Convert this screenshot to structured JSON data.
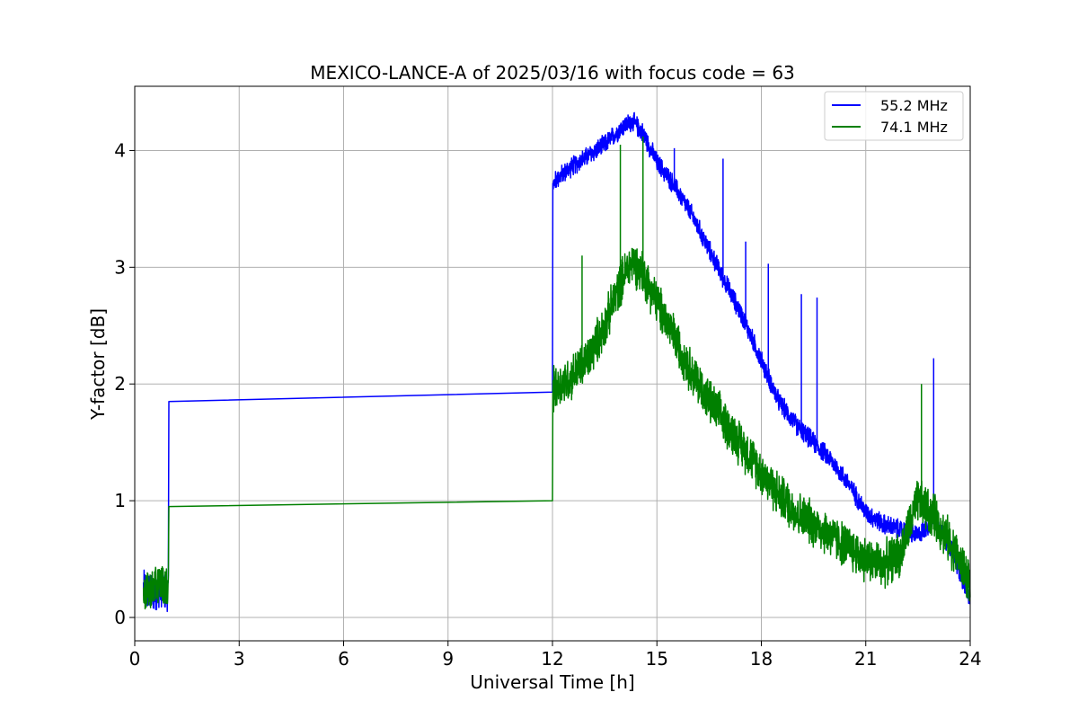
{
  "chart_data": {
    "type": "line",
    "title": "MEXICO-LANCE-A of 2025/03/16 with focus code = 63",
    "xlabel": "Universal Time [h]",
    "ylabel": "Y-factor [dB]",
    "xlim": [
      0,
      24
    ],
    "ylim": [
      -0.2,
      4.55
    ],
    "xticks": [
      0,
      3,
      6,
      9,
      12,
      15,
      18,
      21,
      24
    ],
    "yticks": [
      0,
      1,
      2,
      3,
      4
    ],
    "grid": true,
    "legend_position": "top-right",
    "series": [
      {
        "name": "55.2 MHz",
        "color": "#0000ff",
        "x": [
          0.25,
          0.5,
          0.75,
          0.97,
          0.98,
          12.0,
          12.01,
          12.1,
          12.5,
          13.0,
          13.5,
          14.0,
          14.3,
          14.6,
          15.0,
          15.5,
          16.0,
          16.5,
          17.0,
          17.5,
          18.0,
          18.5,
          19.0,
          19.5,
          20.0,
          20.5,
          21.0,
          21.5,
          22.0,
          22.5,
          23.0,
          23.5,
          24.0
        ],
        "y": [
          0.25,
          0.2,
          0.25,
          0.2,
          1.85,
          1.93,
          3.7,
          3.75,
          3.85,
          3.95,
          4.05,
          4.2,
          4.25,
          4.15,
          3.9,
          3.7,
          3.45,
          3.15,
          2.85,
          2.55,
          2.2,
          1.85,
          1.65,
          1.5,
          1.35,
          1.15,
          0.9,
          0.8,
          0.75,
          0.7,
          0.85,
          0.55,
          0.15
        ]
      },
      {
        "name": "74.1 MHz",
        "color": "#008000",
        "x": [
          0.25,
          0.5,
          0.75,
          0.97,
          0.98,
          12.0,
          12.01,
          12.5,
          13.0,
          13.5,
          14.0,
          14.3,
          14.6,
          15.0,
          15.5,
          16.0,
          16.5,
          17.0,
          17.5,
          18.0,
          18.5,
          19.0,
          19.5,
          20.0,
          20.5,
          21.0,
          21.5,
          22.0,
          22.5,
          23.0,
          23.5,
          24.0
        ],
        "y": [
          0.2,
          0.25,
          0.3,
          0.25,
          0.95,
          1.0,
          1.95,
          2.05,
          2.2,
          2.5,
          2.9,
          3.05,
          2.95,
          2.7,
          2.4,
          2.1,
          1.85,
          1.65,
          1.45,
          1.25,
          1.05,
          0.9,
          0.8,
          0.7,
          0.6,
          0.5,
          0.45,
          0.55,
          1.0,
          0.85,
          0.6,
          0.3
        ]
      }
    ],
    "spikes": {
      "55.2 MHz": [
        {
          "x": 15.5,
          "y": 4.02
        },
        {
          "x": 16.9,
          "y": 3.93
        },
        {
          "x": 17.55,
          "y": 3.22
        },
        {
          "x": 18.2,
          "y": 3.03
        },
        {
          "x": 19.15,
          "y": 2.77
        },
        {
          "x": 19.6,
          "y": 2.74
        },
        {
          "x": 22.95,
          "y": 2.22
        }
      ],
      "74.1 MHz": [
        {
          "x": 12.85,
          "y": 3.1
        },
        {
          "x": 13.95,
          "y": 4.05
        },
        {
          "x": 14.6,
          "y": 4.12
        },
        {
          "x": 22.6,
          "y": 2.0
        }
      ]
    }
  }
}
